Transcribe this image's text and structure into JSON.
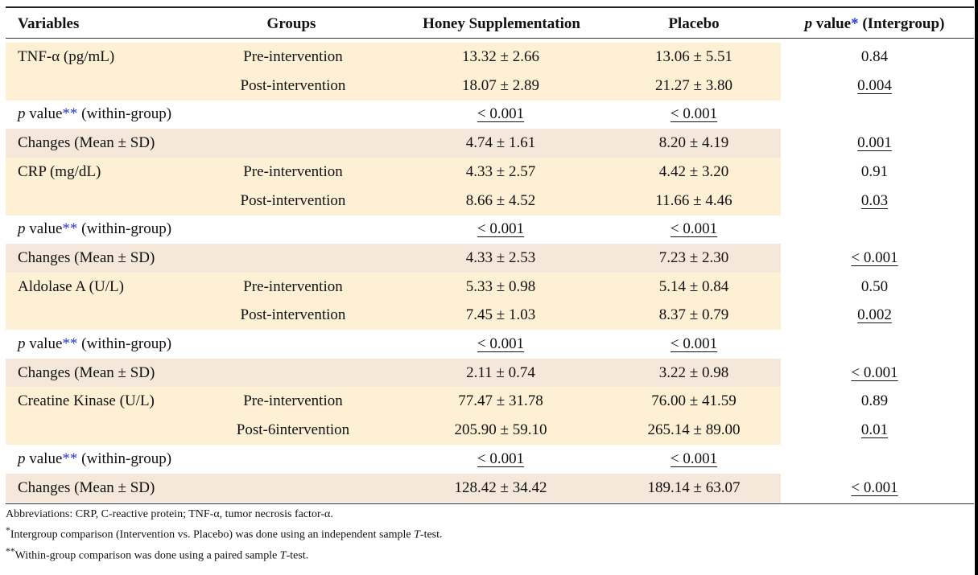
{
  "table": {
    "headers": {
      "variables": "Variables",
      "groups": "Groups",
      "honey": "Honey Supplementation",
      "placebo": "Placebo",
      "pvalue_p": "p",
      "pvalue_mid": " value",
      "pvalue_star": "*",
      "pvalue_tail": " (Intergroup)"
    },
    "colors": {
      "band_light": "#fdf0d4",
      "band_dark": "#f5e7d9",
      "asterisk": "#2a3bd6"
    },
    "rows": [
      {
        "variable": "TNF-α (pg/mL)",
        "group": "Pre-intervention",
        "honey": "13.32 ± 2.66",
        "placebo": "13.06 ± 5.51",
        "pvalue": "0.84",
        "pvalue_underlined": false,
        "band": "light",
        "wide": true
      },
      {
        "variable": "",
        "group": "Post-intervention",
        "honey": "18.07 ± 2.89",
        "placebo": "21.27 ± 3.80",
        "pvalue": "0.004",
        "pvalue_underlined": true,
        "band": "light",
        "wide": true
      },
      {
        "variable": "p value** (within-group)",
        "group": "",
        "honey": "< 0.001",
        "placebo": "< 0.001",
        "pvalue": "",
        "pvalue_underlined": false,
        "band": "none",
        "wide": false,
        "within": true
      },
      {
        "variable": "Changes (Mean ± SD)",
        "group": "",
        "honey": "4.74 ± 1.61",
        "placebo": "8.20 ± 4.19",
        "pvalue": "0.001",
        "pvalue_underlined": true,
        "band": "dark",
        "wide": true
      },
      {
        "variable": "CRP (mg/dL)",
        "group": "Pre-intervention",
        "honey": "4.33 ± 2.57",
        "placebo": "4.42 ± 3.20",
        "pvalue": "0.91",
        "pvalue_underlined": false,
        "band": "light",
        "wide": false
      },
      {
        "variable": "",
        "group": "Post-intervention",
        "honey": "8.66 ± 4.52",
        "placebo": "11.66 ± 4.46",
        "pvalue": "0.03",
        "pvalue_underlined": true,
        "band": "light",
        "wide": false
      },
      {
        "variable": "p value** (within-group)",
        "group": "",
        "honey": "< 0.001",
        "placebo": "< 0.001",
        "pvalue": "",
        "pvalue_underlined": false,
        "band": "none",
        "wide": false,
        "within": true
      },
      {
        "variable": "Changes (Mean ± SD)",
        "group": "",
        "honey": "4.33 ± 2.53",
        "placebo": "7.23 ± 2.30",
        "pvalue": "< 0.001",
        "pvalue_underlined": true,
        "band": "dark",
        "wide": true
      },
      {
        "variable": "Aldolase A (U/L)",
        "group": "Pre-intervention",
        "honey": "5.33 ± 0.98",
        "placebo": "5.14 ± 0.84",
        "pvalue": "0.50",
        "pvalue_underlined": false,
        "band": "light",
        "wide": false
      },
      {
        "variable": "",
        "group": "Post-intervention",
        "honey": "7.45 ± 1.03",
        "placebo": "8.37 ± 0.79",
        "pvalue": "0.002",
        "pvalue_underlined": true,
        "band": "light",
        "wide": false
      },
      {
        "variable": "p value** (within-group)",
        "group": "",
        "honey": "< 0.001",
        "placebo": "< 0.001",
        "pvalue": "",
        "pvalue_underlined": false,
        "band": "none",
        "wide": false,
        "within": true
      },
      {
        "variable": "Changes (Mean ± SD)",
        "group": "",
        "honey": "2.11 ± 0.74",
        "placebo": "3.22 ± 0.98",
        "pvalue": "< 0.001",
        "pvalue_underlined": true,
        "band": "dark",
        "wide": true
      },
      {
        "variable": "Creatine Kinase (U/L)",
        "group": "Pre-intervention",
        "honey": "77.47 ± 31.78",
        "placebo": "76.00 ± 41.59",
        "pvalue": "0.89",
        "pvalue_underlined": false,
        "band": "light",
        "wide": false
      },
      {
        "variable": "",
        "group": "Post-6intervention",
        "honey": "205.90 ± 59.10",
        "placebo": "265.14 ± 89.00",
        "pvalue": "0.01",
        "pvalue_underlined": true,
        "band": "light",
        "wide": false
      },
      {
        "variable": "p value** (within-group)",
        "group": "",
        "honey": "< 0.001",
        "placebo": "< 0.001",
        "pvalue": "",
        "pvalue_underlined": false,
        "band": "none",
        "wide": false,
        "within": true
      },
      {
        "variable": "Changes (Mean ± SD)",
        "group": "",
        "honey": "128.42 ± 34.42",
        "placebo": "189.14 ± 63.07",
        "pvalue": "< 0.001",
        "pvalue_underlined": true,
        "band": "dark",
        "wide": true
      }
    ]
  },
  "footnotes": {
    "abbreviations": "Abbreviations: CRP, C-reactive protein; TNF-α, tumor necrosis factor-α.",
    "note1_mark": "*",
    "note1_text_a": "Intergroup comparison (Intervention vs. Placebo) was done using an independent sample ",
    "note1_italic": "T",
    "note1_text_b": "-test.",
    "note2_mark": "**",
    "note2_text_a": "Within-group comparison was done using a paired sample ",
    "note2_italic": "T",
    "note2_text_b": "-test."
  }
}
